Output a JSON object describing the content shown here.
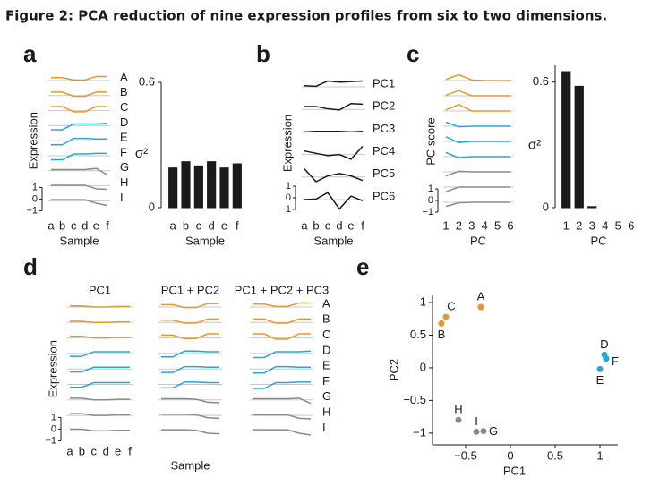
{
  "title": "Figure 2: PCA reduction of nine expression profiles from six to two dimensions.",
  "chart_data": [
    {
      "type": "profiles",
      "panel": "a",
      "ylabel": "Expression",
      "xlabel": "Sample",
      "categories": [
        "a",
        "b",
        "c",
        "d",
        "e",
        "f"
      ],
      "scale_ticks": [
        1,
        0,
        {
          "value": -1,
          "label": "−1"
        }
      ],
      "series": [
        {
          "name": "A",
          "color": "#e8962e",
          "values": [
            0.25,
            0.25,
            0.05,
            0.05,
            0.35,
            0.35
          ]
        },
        {
          "name": "B",
          "color": "#e8962e",
          "values": [
            0.3,
            0.3,
            -0.05,
            -0.05,
            0.3,
            0.3
          ]
        },
        {
          "name": "C",
          "color": "#e8962e",
          "values": [
            0.35,
            0.35,
            -0.1,
            -0.1,
            0.35,
            0.35
          ]
        },
        {
          "name": "D",
          "color": "#2aa5d8",
          "values": [
            -0.35,
            -0.35,
            0.15,
            0.15,
            0.15,
            0.2
          ]
        },
        {
          "name": "E",
          "color": "#2aa5d8",
          "values": [
            -0.35,
            -0.35,
            0.2,
            0.2,
            0.15,
            0.15
          ]
        },
        {
          "name": "F",
          "color": "#2aa5d8",
          "values": [
            -0.35,
            -0.35,
            0.15,
            0.15,
            0.2,
            0.2
          ]
        },
        {
          "name": "G",
          "color": "#8a8a8a",
          "values": [
            0.1,
            0.1,
            0.1,
            0.1,
            0.2,
            -0.35
          ]
        },
        {
          "name": "H",
          "color": "#8a8a8a",
          "values": [
            0.05,
            0.05,
            0.05,
            0.05,
            -0.25,
            -0.3
          ]
        },
        {
          "name": "I",
          "color": "#8a8a8a",
          "values": [
            0.1,
            0.1,
            0.1,
            0.1,
            -0.2,
            -0.4
          ]
        }
      ]
    },
    {
      "type": "bar",
      "ylabel": "σ²",
      "xlabel": "Sample",
      "categories": [
        "a",
        "b",
        "c",
        "d",
        "e",
        "f"
      ],
      "values": [
        0.19,
        0.22,
        0.2,
        0.22,
        0.19,
        0.21
      ],
      "color": "#1a1a1a",
      "ylim": [
        0,
        0.6
      ],
      "yticks": [
        0,
        0.6
      ]
    },
    {
      "type": "profiles",
      "panel": "b",
      "ylabel": "Expression",
      "xlabel": "Sample",
      "categories": [
        "a",
        "b",
        "c",
        "d",
        "e",
        "f"
      ],
      "scale_ticks": [
        1,
        0,
        {
          "value": -1,
          "label": "−1"
        }
      ],
      "series": [
        {
          "name": "PC1",
          "color": "#1a1a1a",
          "values": [
            0.1,
            0.05,
            0.5,
            0.4,
            0.45,
            0.5
          ]
        },
        {
          "name": "PC2",
          "color": "#1a1a1a",
          "values": [
            0.25,
            0.25,
            0.05,
            -0.05,
            0.5,
            0.45
          ]
        },
        {
          "name": "PC3",
          "color": "#1a1a1a",
          "values": [
            0,
            0.05,
            0.05,
            0.05,
            0,
            0.05
          ]
        },
        {
          "name": "PC4",
          "color": "#1a1a1a",
          "values": [
            0.3,
            0.1,
            -0.1,
            0,
            -0.4,
            0.7
          ]
        },
        {
          "name": "PC5",
          "color": "#1a1a1a",
          "values": [
            0.7,
            -0.4,
            0.1,
            0.3,
            0.1,
            -0.3
          ]
        },
        {
          "name": "PC6",
          "color": "#1a1a1a",
          "values": [
            0,
            0.05,
            0.6,
            -0.8,
            0.3,
            -0.1
          ]
        }
      ]
    },
    {
      "type": "profiles",
      "panel": "c",
      "ylabel": "PC score",
      "xlabel": "PC",
      "categories": [
        "1",
        "2",
        "3",
        "4",
        "5",
        "6"
      ],
      "scale_ticks": [
        1,
        0,
        {
          "value": -1,
          "label": "−1"
        }
      ],
      "series": [
        {
          "color": "#e8962e",
          "values": [
            0.1,
            0.5,
            0.05,
            0,
            0,
            0
          ]
        },
        {
          "color": "#e8962e",
          "values": [
            0.05,
            0.45,
            0,
            0,
            0,
            0
          ]
        },
        {
          "color": "#e8962e",
          "values": [
            0.1,
            0.55,
            0,
            0,
            0,
            0
          ]
        },
        {
          "color": "#2aa5d8",
          "values": [
            0.35,
            -0.05,
            0,
            0,
            0,
            0
          ]
        },
        {
          "color": "#2aa5d8",
          "values": [
            0.4,
            -0.1,
            0,
            0,
            0,
            0
          ]
        },
        {
          "color": "#2aa5d8",
          "values": [
            0.35,
            -0.1,
            0,
            0,
            0,
            0
          ]
        },
        {
          "color": "#8a8a8a",
          "values": [
            -0.35,
            0.05,
            0,
            0,
            0,
            0
          ]
        },
        {
          "color": "#8a8a8a",
          "values": [
            -0.4,
            0,
            0,
            0,
            0,
            0
          ]
        },
        {
          "color": "#8a8a8a",
          "values": [
            -0.35,
            -0.05,
            0,
            0,
            0,
            0
          ]
        }
      ]
    },
    {
      "type": "bar",
      "ylabel": "σ²",
      "xlabel": "PC",
      "categories": [
        "1",
        "2",
        "3",
        "4",
        "5",
        "6"
      ],
      "values": [
        0.65,
        0.58,
        0.005,
        0,
        0,
        0
      ],
      "color": "#1a1a1a",
      "ylim": [
        0,
        0.68
      ],
      "yticks": [
        0,
        0.6
      ]
    },
    {
      "type": "profiles",
      "panel": "d",
      "title": "PC1",
      "ylabel": "Expression",
      "categories": [
        "a",
        "b",
        "c",
        "d",
        "e",
        "f"
      ],
      "scale_ticks": [
        1,
        0,
        {
          "value": -1,
          "label": "−1"
        }
      ],
      "series": [
        {
          "color": "#e8962e",
          "values": [
            0.1,
            0.1,
            0,
            0,
            0.05,
            0.05
          ]
        },
        {
          "color": "#e8962e",
          "values": [
            0.1,
            0.1,
            0,
            0,
            0.05,
            0.05
          ]
        },
        {
          "color": "#e8962e",
          "values": [
            0.15,
            0.15,
            0,
            0,
            0.05,
            0.05
          ]
        },
        {
          "color": "#2aa5d8",
          "values": [
            -0.25,
            -0.25,
            0.15,
            0.15,
            0.15,
            0.15
          ]
        },
        {
          "color": "#2aa5d8",
          "values": [
            -0.25,
            -0.25,
            0.15,
            0.15,
            0.15,
            0.15
          ]
        },
        {
          "color": "#2aa5d8",
          "values": [
            -0.25,
            -0.25,
            0.15,
            0.15,
            0.15,
            0.15
          ]
        },
        {
          "color": "#8a8a8a",
          "values": [
            0.15,
            0.15,
            0,
            0,
            0.05,
            0.05
          ]
        },
        {
          "color": "#8a8a8a",
          "values": [
            0.15,
            0.15,
            0,
            0,
            0.05,
            0.05
          ]
        },
        {
          "color": "#8a8a8a",
          "values": [
            0.15,
            0.15,
            0,
            0,
            0.05,
            0.05
          ]
        }
      ]
    },
    {
      "type": "profiles",
      "title": "PC1 + PC2",
      "xlabel": "Sample",
      "series": [
        {
          "color": "#e8962e",
          "values": [
            0.2,
            0.2,
            -0.05,
            -0.05,
            0.3,
            0.3
          ]
        },
        {
          "color": "#e8962e",
          "values": [
            0.2,
            0.2,
            -0.05,
            -0.05,
            0.3,
            0.3
          ]
        },
        {
          "color": "#e8962e",
          "values": [
            0.25,
            0.25,
            -0.05,
            -0.05,
            0.35,
            0.35
          ]
        },
        {
          "color": "#2aa5d8",
          "values": [
            -0.3,
            -0.3,
            0.2,
            0.2,
            0.15,
            0.15
          ]
        },
        {
          "color": "#2aa5d8",
          "values": [
            -0.3,
            -0.3,
            0.2,
            0.2,
            0.15,
            0.15
          ]
        },
        {
          "color": "#2aa5d8",
          "values": [
            -0.3,
            -0.3,
            0.2,
            0.2,
            0.15,
            0.15
          ]
        },
        {
          "color": "#8a8a8a",
          "values": [
            0.1,
            0.1,
            0.1,
            0.05,
            -0.2,
            -0.25
          ]
        },
        {
          "color": "#8a8a8a",
          "values": [
            0.1,
            0.1,
            0.1,
            0.05,
            -0.2,
            -0.25
          ]
        },
        {
          "color": "#8a8a8a",
          "values": [
            0.1,
            0.1,
            0.1,
            0.05,
            -0.2,
            -0.25
          ]
        }
      ]
    },
    {
      "type": "profiles",
      "title": "PC1 + PC2 + PC3",
      "series": [
        {
          "name": "A",
          "color": "#e8962e",
          "values": [
            0.25,
            0.25,
            0.05,
            0.05,
            0.35,
            0.35
          ]
        },
        {
          "name": "B",
          "color": "#e8962e",
          "values": [
            0.3,
            0.3,
            -0.05,
            -0.05,
            0.3,
            0.3
          ]
        },
        {
          "name": "C",
          "color": "#e8962e",
          "values": [
            0.35,
            0.35,
            -0.1,
            -0.1,
            0.35,
            0.35
          ]
        },
        {
          "name": "D",
          "color": "#2aa5d8",
          "values": [
            -0.35,
            -0.35,
            0.15,
            0.15,
            0.15,
            0.2
          ]
        },
        {
          "name": "E",
          "color": "#2aa5d8",
          "values": [
            -0.35,
            -0.35,
            0.2,
            0.2,
            0.15,
            0.15
          ]
        },
        {
          "name": "F",
          "color": "#2aa5d8",
          "values": [
            -0.35,
            -0.35,
            0.15,
            0.15,
            0.2,
            0.2
          ]
        },
        {
          "name": "G",
          "color": "#8a8a8a",
          "values": [
            0.1,
            0.1,
            0.1,
            0.1,
            0.15,
            -0.3
          ]
        },
        {
          "name": "H",
          "color": "#8a8a8a",
          "values": [
            0.05,
            0.05,
            0.05,
            0.05,
            -0.25,
            -0.3
          ]
        },
        {
          "name": "I",
          "color": "#8a8a8a",
          "values": [
            0.1,
            0.1,
            0.1,
            0.1,
            -0.2,
            -0.35
          ]
        }
      ]
    },
    {
      "type": "scatter",
      "panel": "e",
      "xlabel": "PC1",
      "ylabel": "PC2",
      "xlim": [
        -0.87,
        1.2
      ],
      "ylim": [
        -1.18,
        1.11
      ],
      "xticks": [
        {
          "value": -0.5,
          "label": "−0.5"
        },
        0,
        0.5,
        1
      ],
      "yticks": [
        1,
        0.5,
        0,
        {
          "value": -0.5,
          "label": "−0.5"
        },
        {
          "value": -1,
          "label": "−1"
        }
      ],
      "labels": [
        "A",
        "B",
        "C",
        "D",
        "E",
        "F",
        "G",
        "H",
        "I"
      ],
      "x": [
        -0.33,
        -0.77,
        -0.72,
        1.05,
        1.0,
        1.07,
        -0.3,
        -0.58,
        -0.38
      ],
      "y": [
        0.93,
        0.68,
        0.78,
        0.2,
        -0.02,
        0.14,
        -0.97,
        -0.8,
        -0.98
      ],
      "colors": [
        "#e8962e",
        "#e8962e",
        "#e8962e",
        "#2aa5d8",
        "#2aa5d8",
        "#2aa5d8",
        "#8a8a8a",
        "#8a8a8a",
        "#8a8a8a"
      ]
    }
  ]
}
